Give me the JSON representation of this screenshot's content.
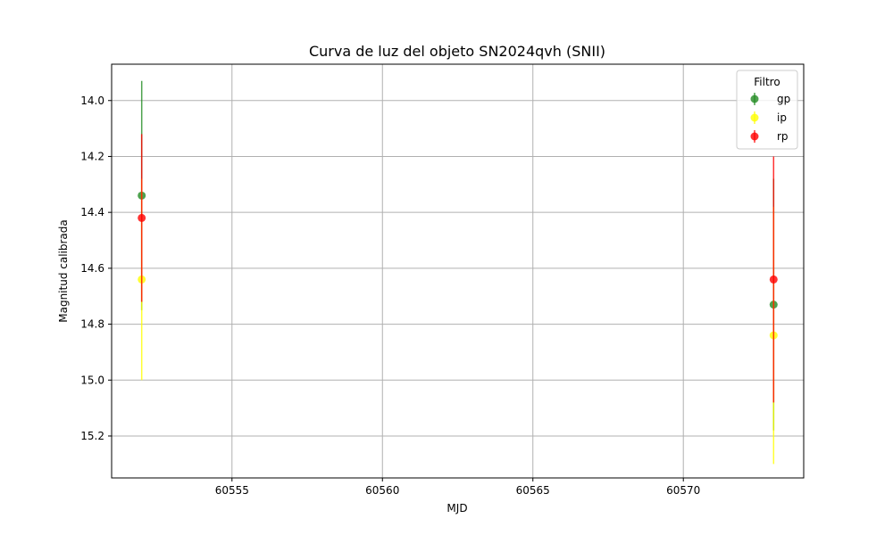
{
  "chart_data": {
    "type": "scatter",
    "title": "Curva de luz del objeto SN2024qvh (SNII)",
    "xlabel": "MJD",
    "ylabel": "Magnitud calibrada",
    "xlim": [
      60551.0,
      60574.0
    ],
    "ylim": [
      15.35,
      13.87
    ],
    "y_inverted": true,
    "xticks": [
      60555,
      60560,
      60565,
      60570
    ],
    "yticks": [
      14.0,
      14.2,
      14.4,
      14.6,
      14.8,
      15.0,
      15.2
    ],
    "grid": true,
    "legend": {
      "title": "Filtro",
      "placement": "top-right"
    },
    "series": [
      {
        "name": "gp",
        "color": "#228b22",
        "points": [
          {
            "x": 60552.0,
            "y": 14.34,
            "err": 0.41
          },
          {
            "x": 60573.0,
            "y": 14.73,
            "err": 0.45
          }
        ]
      },
      {
        "name": "ip",
        "color": "#ffff00",
        "points": [
          {
            "x": 60552.0,
            "y": 14.64,
            "err": 0.36
          },
          {
            "x": 60573.0,
            "y": 14.84,
            "err": 0.46
          }
        ]
      },
      {
        "name": "rp",
        "color": "#ff0000",
        "points": [
          {
            "x": 60552.0,
            "y": 14.42,
            "err": 0.3
          },
          {
            "x": 60573.0,
            "y": 14.64,
            "err": 0.44
          }
        ]
      }
    ]
  }
}
